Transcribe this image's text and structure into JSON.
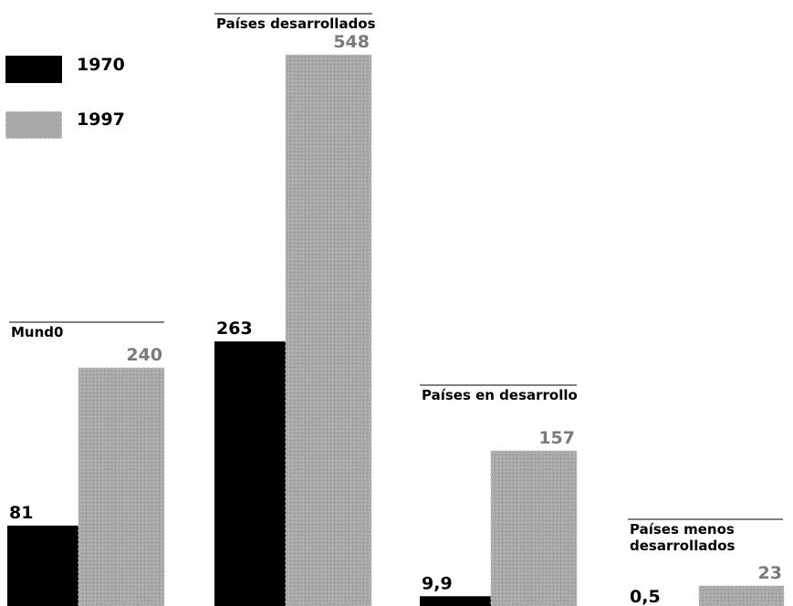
{
  "legend": {
    "items": [
      {
        "label": "1970",
        "color": "#000000"
      },
      {
        "label": "1997",
        "color": "#a9a9a9"
      }
    ]
  },
  "chart_data": {
    "type": "bar",
    "title": "",
    "xlabel": "",
    "ylabel": "",
    "categories": [
      "Mund0",
      "Países desarrollados",
      "Países en desarrollo",
      "Países menos desarrollados"
    ],
    "category_lines": [
      [
        "Mund0"
      ],
      [
        "Países desarrollados"
      ],
      [
        "Países en desarrollo"
      ],
      [
        "Países menos",
        "desarrollados"
      ]
    ],
    "value_labels": {
      "1970": [
        "81",
        "263",
        "9,9",
        "0,5"
      ],
      "1997": [
        "240",
        "548",
        "157",
        "23"
      ]
    },
    "series": [
      {
        "name": "1970",
        "values": [
          81,
          263,
          9.9,
          0.5
        ],
        "color": "#000000"
      },
      {
        "name": "1997",
        "values": [
          240,
          548,
          157,
          23
        ],
        "color": "#a9a9a9"
      }
    ],
    "note": "Each group is drawn with its own scale; bars are cropped at the bottom edge.",
    "grid": false,
    "legend_position": "top-left"
  }
}
